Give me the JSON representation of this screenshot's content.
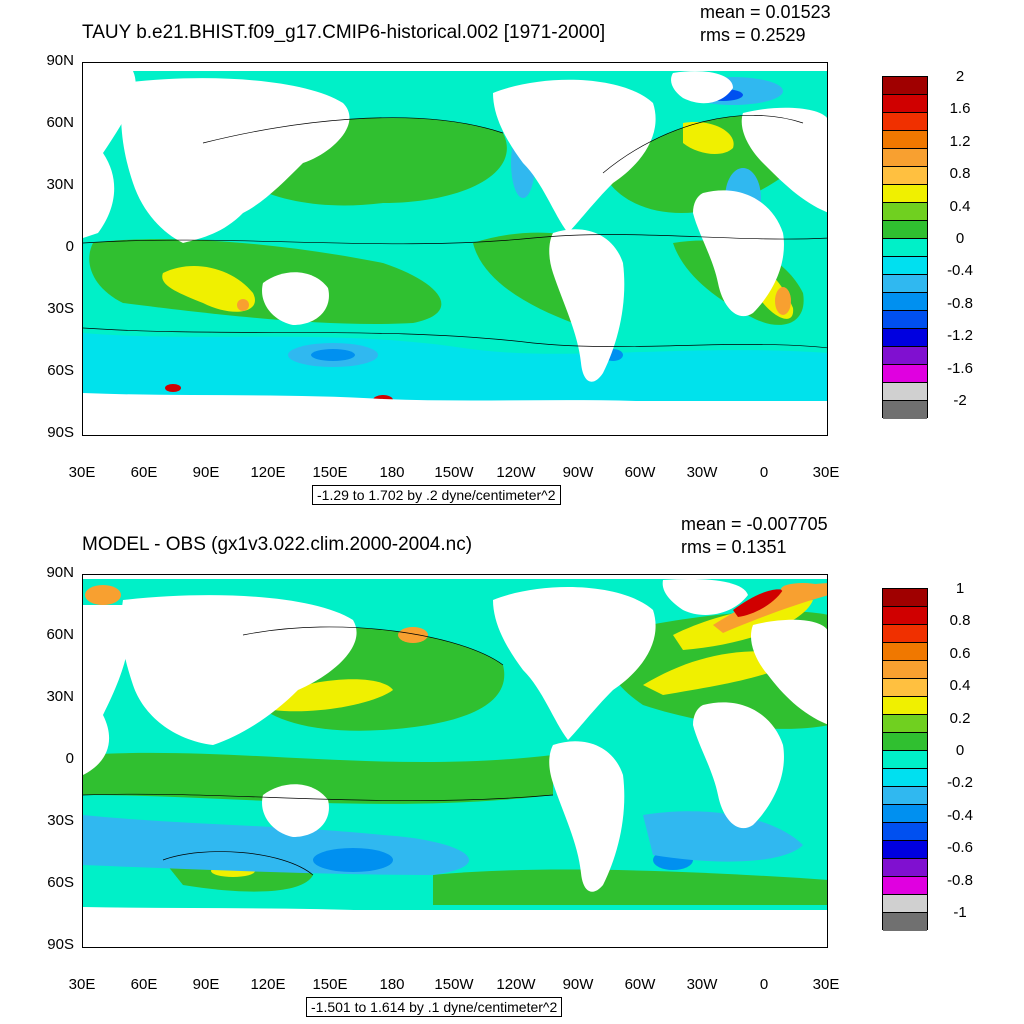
{
  "panels": [
    {
      "title": "TAUY b.e21.BHIST.f09_g17.CMIP6-historical.002 [1971-2000]",
      "mean": "mean = 0.01523",
      "rms": "rms = 0.2529",
      "subtitle": "-1.29 to 1.702 by .2 dyne/centimeter^2",
      "colorbar": {
        "labels": [
          "2",
          "1.6",
          "1.2",
          "0.8",
          "0.4",
          "0",
          "-0.4",
          "-0.8",
          "-1.2",
          "-1.6",
          "-2"
        ],
        "colors": [
          "#a00000",
          "#d00000",
          "#f03000",
          "#f07800",
          "#f8a030",
          "#ffc040",
          "#f0f000",
          "#70d020",
          "#30c030",
          "#00f0c8",
          "#00e0f0",
          "#30b8f0",
          "#0090f0",
          "#0050f0",
          "#0000e0",
          "#8010d0",
          "#e000e0",
          "#d0d0d0",
          "#707070"
        ]
      }
    },
    {
      "title": "MODEL - OBS (gx1v3.022.clim.2000-2004.nc)",
      "mean": "mean = -0.007705",
      "rms": "rms = 0.1351",
      "subtitle": "-1.501 to 1.614 by .1 dyne/centimeter^2",
      "colorbar": {
        "labels": [
          "1",
          "0.8",
          "0.6",
          "0.4",
          "0.2",
          "0",
          "-0.2",
          "-0.4",
          "-0.6",
          "-0.8",
          "-1"
        ],
        "colors": [
          "#a00000",
          "#d00000",
          "#f03000",
          "#f07800",
          "#f8a030",
          "#ffc040",
          "#f0f000",
          "#70d020",
          "#30c030",
          "#00f0c8",
          "#00e0f0",
          "#30b8f0",
          "#0090f0",
          "#0050f0",
          "#0000e0",
          "#8010d0",
          "#e000e0",
          "#d0d0d0",
          "#707070"
        ]
      }
    }
  ],
  "axes": {
    "lat_labels": [
      "90N",
      "60N",
      "30N",
      "0",
      "30S",
      "60S",
      "90S"
    ],
    "lon_labels": [
      "30E",
      "60E",
      "90E",
      "120E",
      "150E",
      "180",
      "150W",
      "120W",
      "90W",
      "60W",
      "30W",
      "0",
      "30E"
    ]
  },
  "colors": {
    "ocean_base": "#00f0c8",
    "land": "#ffffff"
  }
}
